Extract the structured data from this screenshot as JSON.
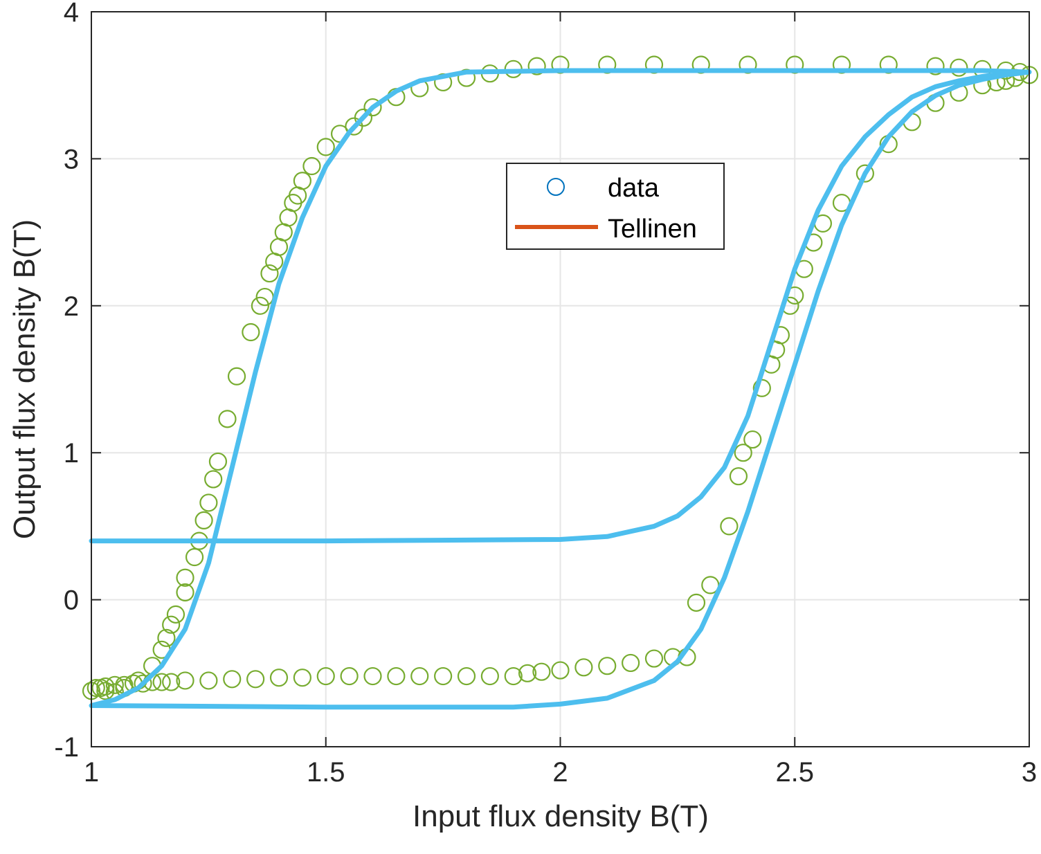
{
  "chart_data": {
    "type": "scatter",
    "xlabel": "Input flux density B(T)",
    "ylabel": "Output flux density B(T)",
    "xlim": [
      1,
      3
    ],
    "ylim": [
      -1,
      4
    ],
    "xticks": [
      1,
      1.5,
      2,
      2.5,
      3
    ],
    "xtick_labels": [
      "1",
      "1.5",
      "2",
      "2.5",
      "3"
    ],
    "yticks": [
      -1,
      0,
      1,
      2,
      3,
      4
    ],
    "ytick_labels": [
      "-1",
      "0",
      "1",
      "2",
      "3",
      "4"
    ],
    "grid": true,
    "legend_position": "upper center",
    "legend": [
      {
        "label": "data",
        "marker": "circle",
        "color": "#0072BD"
      },
      {
        "label": "Tellinen",
        "marker": "line",
        "color": "#D95319"
      }
    ],
    "colors": {
      "data_points": "#77AC30",
      "model_curve": "#4DBEEE",
      "legend_data": "#0072BD",
      "legend_line": "#D95319",
      "grid": "#e6e6e6",
      "axis": "#262626"
    },
    "series": [
      {
        "name": "data",
        "style": "markers",
        "points": [
          [
            1.0,
            -0.62
          ],
          [
            1.01,
            -0.6
          ],
          [
            1.02,
            -0.6
          ],
          [
            1.03,
            -0.59
          ],
          [
            1.05,
            -0.58
          ],
          [
            1.07,
            -0.58
          ],
          [
            1.09,
            -0.57
          ],
          [
            1.11,
            -0.57
          ],
          [
            1.13,
            -0.56
          ],
          [
            1.15,
            -0.56
          ],
          [
            1.17,
            -0.56
          ],
          [
            1.2,
            -0.55
          ],
          [
            1.25,
            -0.55
          ],
          [
            1.3,
            -0.54
          ],
          [
            1.35,
            -0.54
          ],
          [
            1.4,
            -0.53
          ],
          [
            1.45,
            -0.53
          ],
          [
            1.5,
            -0.52
          ],
          [
            1.55,
            -0.52
          ],
          [
            1.6,
            -0.52
          ],
          [
            1.65,
            -0.52
          ],
          [
            1.7,
            -0.52
          ],
          [
            1.75,
            -0.52
          ],
          [
            1.8,
            -0.52
          ],
          [
            1.85,
            -0.52
          ],
          [
            1.9,
            -0.52
          ],
          [
            1.93,
            -0.5
          ],
          [
            1.96,
            -0.49
          ],
          [
            2.0,
            -0.48
          ],
          [
            2.05,
            -0.46
          ],
          [
            2.1,
            -0.45
          ],
          [
            2.15,
            -0.43
          ],
          [
            2.2,
            -0.4
          ],
          [
            2.24,
            -0.39
          ],
          [
            2.27,
            -0.39
          ],
          [
            2.29,
            -0.02
          ],
          [
            2.32,
            0.1
          ],
          [
            2.36,
            0.5
          ],
          [
            2.38,
            0.84
          ],
          [
            2.39,
            1.0
          ],
          [
            2.41,
            1.09
          ],
          [
            2.43,
            1.44
          ],
          [
            2.45,
            1.6
          ],
          [
            2.46,
            1.7
          ],
          [
            2.47,
            1.8
          ],
          [
            2.49,
            2.0
          ],
          [
            2.5,
            2.07
          ],
          [
            2.52,
            2.25
          ],
          [
            2.54,
            2.43
          ],
          [
            2.56,
            2.56
          ],
          [
            2.6,
            2.7
          ],
          [
            2.65,
            2.9
          ],
          [
            2.7,
            3.1
          ],
          [
            2.75,
            3.25
          ],
          [
            2.8,
            3.38
          ],
          [
            2.85,
            3.45
          ],
          [
            2.9,
            3.5
          ],
          [
            2.93,
            3.52
          ],
          [
            2.95,
            3.53
          ],
          [
            2.97,
            3.55
          ],
          [
            3.0,
            3.57
          ],
          [
            2.98,
            3.59
          ],
          [
            2.95,
            3.6
          ],
          [
            2.9,
            3.61
          ],
          [
            2.85,
            3.62
          ],
          [
            2.8,
            3.63
          ],
          [
            2.7,
            3.64
          ],
          [
            2.6,
            3.64
          ],
          [
            2.5,
            3.64
          ],
          [
            2.4,
            3.64
          ],
          [
            2.3,
            3.64
          ],
          [
            2.2,
            3.64
          ],
          [
            2.1,
            3.64
          ],
          [
            2.0,
            3.64
          ],
          [
            1.95,
            3.63
          ],
          [
            1.9,
            3.61
          ],
          [
            1.85,
            3.58
          ],
          [
            1.8,
            3.55
          ],
          [
            1.75,
            3.52
          ],
          [
            1.7,
            3.48
          ],
          [
            1.65,
            3.42
          ],
          [
            1.6,
            3.35
          ],
          [
            1.58,
            3.28
          ],
          [
            1.56,
            3.22
          ],
          [
            1.53,
            3.17
          ],
          [
            1.5,
            3.08
          ],
          [
            1.47,
            2.95
          ],
          [
            1.45,
            2.85
          ],
          [
            1.44,
            2.75
          ],
          [
            1.43,
            2.7
          ],
          [
            1.42,
            2.6
          ],
          [
            1.41,
            2.5
          ],
          [
            1.4,
            2.4
          ],
          [
            1.39,
            2.3
          ],
          [
            1.38,
            2.22
          ],
          [
            1.37,
            2.06
          ],
          [
            1.36,
            2.0
          ],
          [
            1.34,
            1.82
          ],
          [
            1.31,
            1.52
          ],
          [
            1.29,
            1.23
          ],
          [
            1.27,
            0.94
          ],
          [
            1.26,
            0.82
          ],
          [
            1.25,
            0.66
          ],
          [
            1.24,
            0.54
          ],
          [
            1.23,
            0.4
          ],
          [
            1.22,
            0.29
          ],
          [
            1.2,
            0.15
          ],
          [
            1.2,
            0.05
          ],
          [
            1.18,
            -0.1
          ],
          [
            1.17,
            -0.17
          ],
          [
            1.16,
            -0.26
          ],
          [
            1.15,
            -0.34
          ],
          [
            1.13,
            -0.45
          ],
          [
            1.1,
            -0.55
          ],
          [
            1.07,
            -0.6
          ],
          [
            1.05,
            -0.63
          ],
          [
            1.03,
            -0.62
          ]
        ]
      },
      {
        "name": "Tellinen",
        "style": "line",
        "points": [
          [
            1.0,
            0.4
          ],
          [
            1.5,
            0.4
          ],
          [
            2.0,
            0.41
          ],
          [
            2.1,
            0.43
          ],
          [
            2.2,
            0.5
          ],
          [
            2.25,
            0.57
          ],
          [
            2.3,
            0.7
          ],
          [
            2.35,
            0.9
          ],
          [
            2.4,
            1.25
          ],
          [
            2.45,
            1.75
          ],
          [
            2.5,
            2.25
          ],
          [
            2.55,
            2.65
          ],
          [
            2.6,
            2.95
          ],
          [
            2.65,
            3.15
          ],
          [
            2.7,
            3.3
          ],
          [
            2.75,
            3.42
          ],
          [
            2.8,
            3.49
          ],
          [
            2.85,
            3.53
          ],
          [
            2.9,
            3.56
          ],
          [
            2.95,
            3.58
          ],
          [
            3.0,
            3.59
          ],
          [
            2.9,
            3.6
          ],
          [
            2.5,
            3.6
          ],
          [
            2.0,
            3.6
          ],
          [
            1.8,
            3.59
          ],
          [
            1.7,
            3.53
          ],
          [
            1.65,
            3.46
          ],
          [
            1.6,
            3.35
          ],
          [
            1.55,
            3.18
          ],
          [
            1.5,
            2.95
          ],
          [
            1.45,
            2.6
          ],
          [
            1.4,
            2.15
          ],
          [
            1.35,
            1.55
          ],
          [
            1.3,
            0.9
          ],
          [
            1.25,
            0.25
          ],
          [
            1.2,
            -0.2
          ],
          [
            1.15,
            -0.45
          ],
          [
            1.1,
            -0.6
          ],
          [
            1.05,
            -0.68
          ],
          [
            1.0,
            -0.72
          ],
          [
            1.5,
            -0.73
          ],
          [
            1.9,
            -0.73
          ],
          [
            2.0,
            -0.71
          ],
          [
            2.1,
            -0.67
          ],
          [
            2.2,
            -0.55
          ],
          [
            2.25,
            -0.42
          ],
          [
            2.3,
            -0.2
          ],
          [
            2.35,
            0.15
          ],
          [
            2.4,
            0.6
          ],
          [
            2.45,
            1.1
          ],
          [
            2.5,
            1.6
          ],
          [
            2.55,
            2.1
          ],
          [
            2.6,
            2.55
          ],
          [
            2.65,
            2.9
          ],
          [
            2.7,
            3.15
          ],
          [
            2.75,
            3.32
          ],
          [
            2.8,
            3.43
          ],
          [
            2.85,
            3.5
          ],
          [
            2.9,
            3.54
          ],
          [
            2.95,
            3.57
          ],
          [
            3.0,
            3.59
          ]
        ]
      }
    ]
  }
}
